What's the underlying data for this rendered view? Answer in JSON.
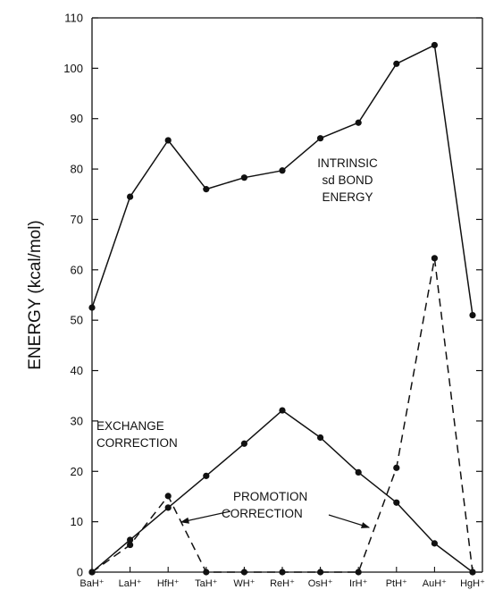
{
  "chart_data": {
    "type": "line",
    "title": "",
    "xlabel": "",
    "ylabel": "ENERGY (kcal/mol)",
    "ylim": [
      0,
      110
    ],
    "yticks": [
      0,
      10,
      20,
      30,
      40,
      50,
      60,
      70,
      80,
      90,
      100,
      110
    ],
    "categories": [
      "BaH⁺",
      "LaH⁺",
      "HfH⁺",
      "TaH⁺",
      "WH⁺",
      "ReH⁺",
      "OsH⁺",
      "IrH⁺",
      "PtH⁺",
      "AuH⁺",
      "HgH⁺"
    ],
    "grid": false,
    "legend": "none",
    "series": [
      {
        "name": "INTRINSIC sd BOND ENERGY",
        "style": "solid",
        "values": [
          52.5,
          74.5,
          85.7,
          76.0,
          78.3,
          79.7,
          86.1,
          89.2,
          100.9,
          104.6,
          51.0
        ]
      },
      {
        "name": "EXCHANGE CORRECTION",
        "style": "solid",
        "values": [
          0,
          6.4,
          12.8,
          19.1,
          25.5,
          32.1,
          26.7,
          19.8,
          13.8,
          5.7,
          0
        ]
      },
      {
        "name": "PROMOTION CORRECTION",
        "style": "dashed",
        "values": [
          0,
          5.4,
          15.1,
          0,
          0,
          0,
          0,
          0,
          20.7,
          62.3,
          0
        ]
      }
    ],
    "annotations": {
      "intrinsic": [
        "INTRINSIC",
        "sd BOND",
        "ENERGY"
      ],
      "exchange": [
        "EXCHANGE",
        "CORRECTION"
      ],
      "promotion": [
        "PROMOTION",
        "CORRECTION"
      ]
    }
  }
}
